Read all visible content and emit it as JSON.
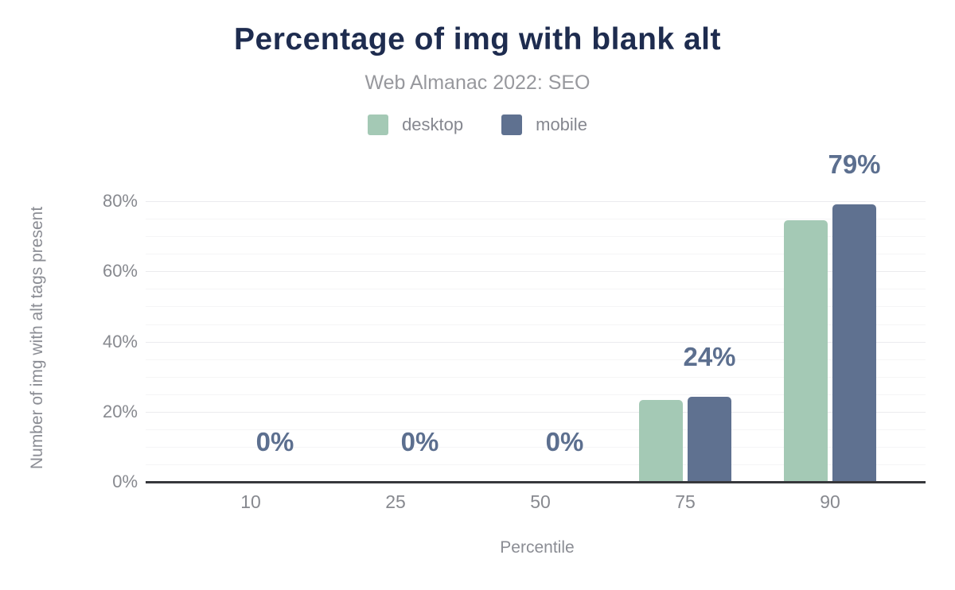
{
  "title": "Percentage of img with blank alt",
  "subtitle": "Web Almanac 2022: SEO",
  "legend": [
    {
      "label": "desktop",
      "color": "#a4c9b5"
    },
    {
      "label": "mobile",
      "color": "#5f7190"
    }
  ],
  "chart_data": {
    "type": "bar",
    "title": "Percentage of img with blank alt",
    "subtitle": "Web Almanac 2022: SEO",
    "xlabel": "Percentile",
    "ylabel": "Number of img with alt tags present",
    "categories": [
      "10",
      "25",
      "50",
      "75",
      "90"
    ],
    "series": [
      {
        "name": "desktop",
        "color": "#a4c9b5",
        "values": [
          0,
          0,
          0,
          23.3,
          74.6
        ]
      },
      {
        "name": "mobile",
        "color": "#5f7190",
        "values": [
          0,
          0,
          0,
          24.3,
          79.1
        ]
      }
    ],
    "value_labels": [
      "0%",
      "0%",
      "0%",
      "24%",
      "79%"
    ],
    "value_label_series": "mobile",
    "y_ticks": [
      {
        "label": "0%",
        "value": 0
      },
      {
        "label": "20%",
        "value": 20
      },
      {
        "label": "40%",
        "value": 40
      },
      {
        "label": "60%",
        "value": 60
      },
      {
        "label": "80%",
        "value": 80
      }
    ],
    "ylim": [
      0,
      85
    ],
    "grid": {
      "horizontal": true,
      "minor_step_pct": 5,
      "major_step_pct": 20
    },
    "legend_position": "top"
  },
  "colors": {
    "background": "#ffffff",
    "title": "#1e2c4f",
    "subtitle": "#97989d",
    "axis_text": "#87898f",
    "axis_title": "#8b8d94",
    "value_label": "#5c6f8f",
    "baseline": "#37383c",
    "grid_minor": "#f5f5f6",
    "grid_major": "#ebebee",
    "desktop_bar": "#a4c9b5",
    "mobile_bar": "#5f7190"
  }
}
